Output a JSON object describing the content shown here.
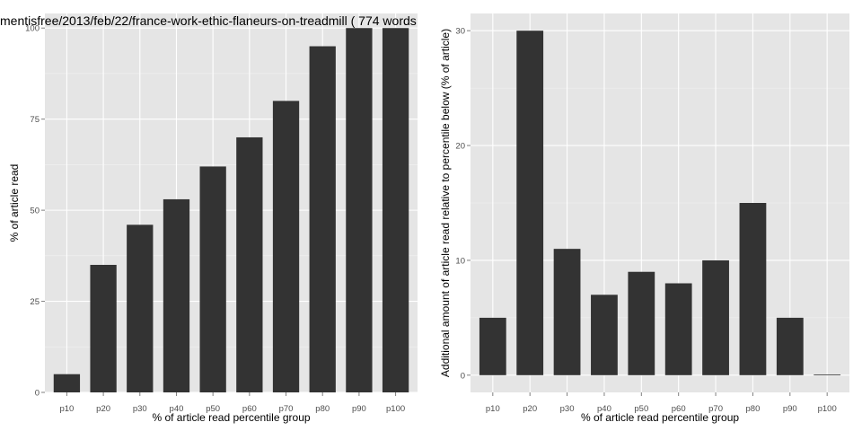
{
  "chart_data": [
    {
      "type": "bar",
      "title": "mentisfree/2013/feb/22/france-work-ethic-flaneurs-on-treadmill ( 774 words",
      "xlabel": "% of article read percentile group",
      "ylabel": "% of article read",
      "categories": [
        "p10",
        "p20",
        "p30",
        "p40",
        "p50",
        "p60",
        "p70",
        "p80",
        "p90",
        "p100"
      ],
      "values": [
        5,
        35,
        46,
        53,
        62,
        70,
        80,
        95,
        100,
        100
      ],
      "ylim": [
        0,
        104
      ],
      "yticks": [
        0,
        25,
        50,
        75,
        100
      ],
      "grid": true,
      "colors": {
        "panel": "#e5e5e5",
        "grid_major": "#ffffff",
        "grid_minor": "#f2f2f2",
        "bar": "#333333"
      }
    },
    {
      "type": "bar",
      "title": "",
      "xlabel": "% of article read percentile group",
      "ylabel": "Additional amount of article read relative to percentile below (% of article)",
      "categories": [
        "p10",
        "p20",
        "p30",
        "p40",
        "p50",
        "p60",
        "p70",
        "p80",
        "p90",
        "p100"
      ],
      "values": [
        5,
        30,
        11,
        7,
        9,
        8,
        10,
        15,
        5,
        0
      ],
      "ylim": [
        -1.5,
        31.5
      ],
      "yticks": [
        0,
        10,
        20,
        30
      ],
      "grid": true,
      "colors": {
        "panel": "#e5e5e5",
        "grid_major": "#ffffff",
        "grid_minor": "#f2f2f2",
        "bar": "#333333"
      }
    }
  ]
}
